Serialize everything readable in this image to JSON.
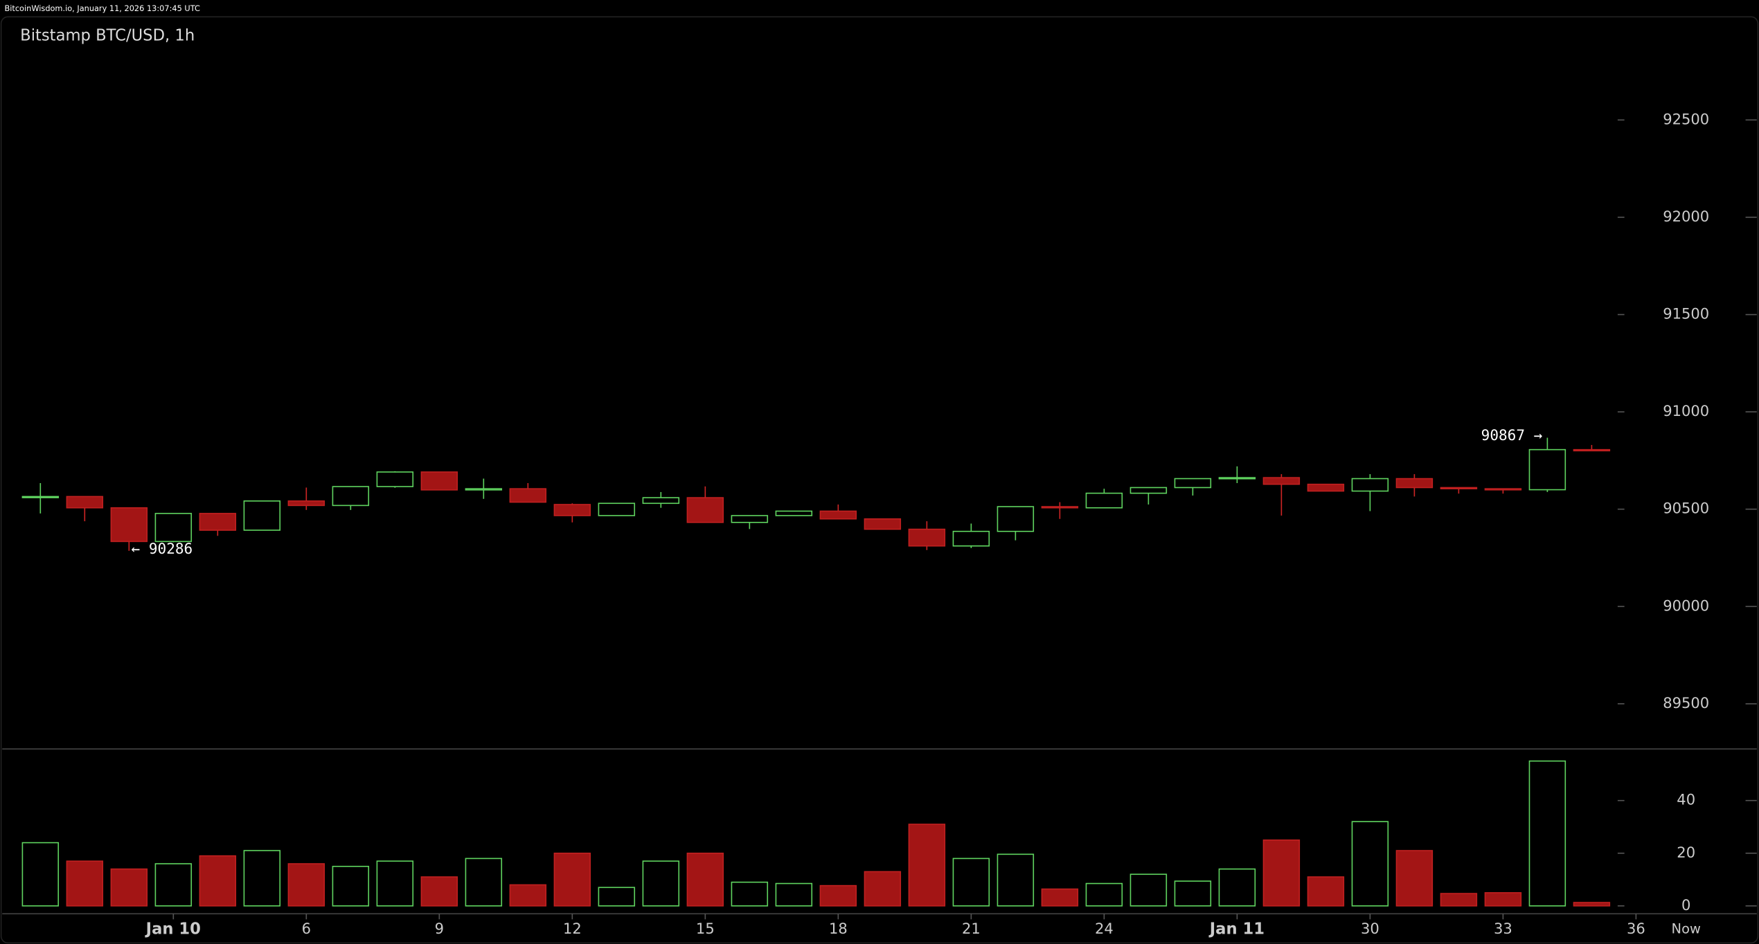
{
  "header": "BitcoinWisdom.io, January 11, 2026 13:07:45 UTC",
  "chart_data": {
    "type": "candlestick",
    "title": "Bitstamp BTC/USD, 1h",
    "up_color": "#5fd35f",
    "down_color": "#a31515",
    "open": [
      90560,
      90565,
      90507,
      90334,
      90478,
      90392,
      90542,
      90519,
      90616,
      90691,
      90599,
      90605,
      90524,
      90467,
      90530,
      90559,
      90432,
      90467,
      90490,
      90450,
      90397,
      90311,
      90386,
      90513,
      90507,
      90582,
      90611,
      90657,
      90662,
      90628,
      90593,
      90657,
      90611,
      90605,
      90600,
      90806
    ],
    "high": [
      90634,
      90565,
      90507,
      90478,
      90478,
      90542,
      90611,
      90616,
      90695,
      90691,
      90657,
      90634,
      90530,
      90530,
      90588,
      90617,
      90467,
      90490,
      90524,
      90450,
      90438,
      90426,
      90513,
      90536,
      90605,
      90611,
      90657,
      90720,
      90680,
      90628,
      90680,
      90680,
      90611,
      90605,
      90867,
      90830
    ],
    "low": [
      90478,
      90438,
      90286,
      90330,
      90363,
      90392,
      90496,
      90496,
      90610,
      90599,
      90553,
      90536,
      90432,
      90467,
      90507,
      90432,
      90398,
      90467,
      90450,
      90397,
      90290,
      90300,
      90340,
      90450,
      90507,
      90524,
      90570,
      90634,
      90467,
      90593,
      90490,
      90565,
      90580,
      90580,
      90588,
      90800
    ],
    "close": [
      90565,
      90507,
      90334,
      90478,
      90392,
      90542,
      90519,
      90616,
      90691,
      90599,
      90605,
      90536,
      90467,
      90530,
      90559,
      90432,
      90467,
      90490,
      90450,
      90397,
      90311,
      90386,
      90513,
      90507,
      90582,
      90611,
      90657,
      90662,
      90628,
      90593,
      90657,
      90611,
      90605,
      90600,
      90806,
      90800
    ],
    "volume": [
      24,
      17,
      14,
      16,
      19,
      21,
      16,
      15,
      17,
      11,
      18,
      8,
      20,
      7,
      17,
      20,
      9,
      8.5,
      7.7,
      13,
      31,
      18,
      19.6,
      6.4,
      8.5,
      12,
      9.4,
      14,
      25,
      11,
      32,
      21,
      4.7,
      5,
      55,
      1.3
    ],
    "ylim": [
      89268,
      93030
    ],
    "yticks": [
      89500,
      90000,
      90500,
      91000,
      91500,
      92000,
      92500
    ],
    "y2lim": [
      0,
      59.6
    ],
    "y2ticks": [
      0,
      20,
      40
    ],
    "xlim": [
      -0.5,
      37.5
    ],
    "xticks": [
      {
        "value": 3,
        "label": "Jan 10"
      },
      6,
      9,
      12,
      15,
      18,
      21,
      24,
      {
        "value": 27,
        "label": "Jan 11"
      },
      30,
      33,
      36
    ],
    "now_label": "Now",
    "annotations": [
      "90867 →",
      "← 90286"
    ]
  }
}
